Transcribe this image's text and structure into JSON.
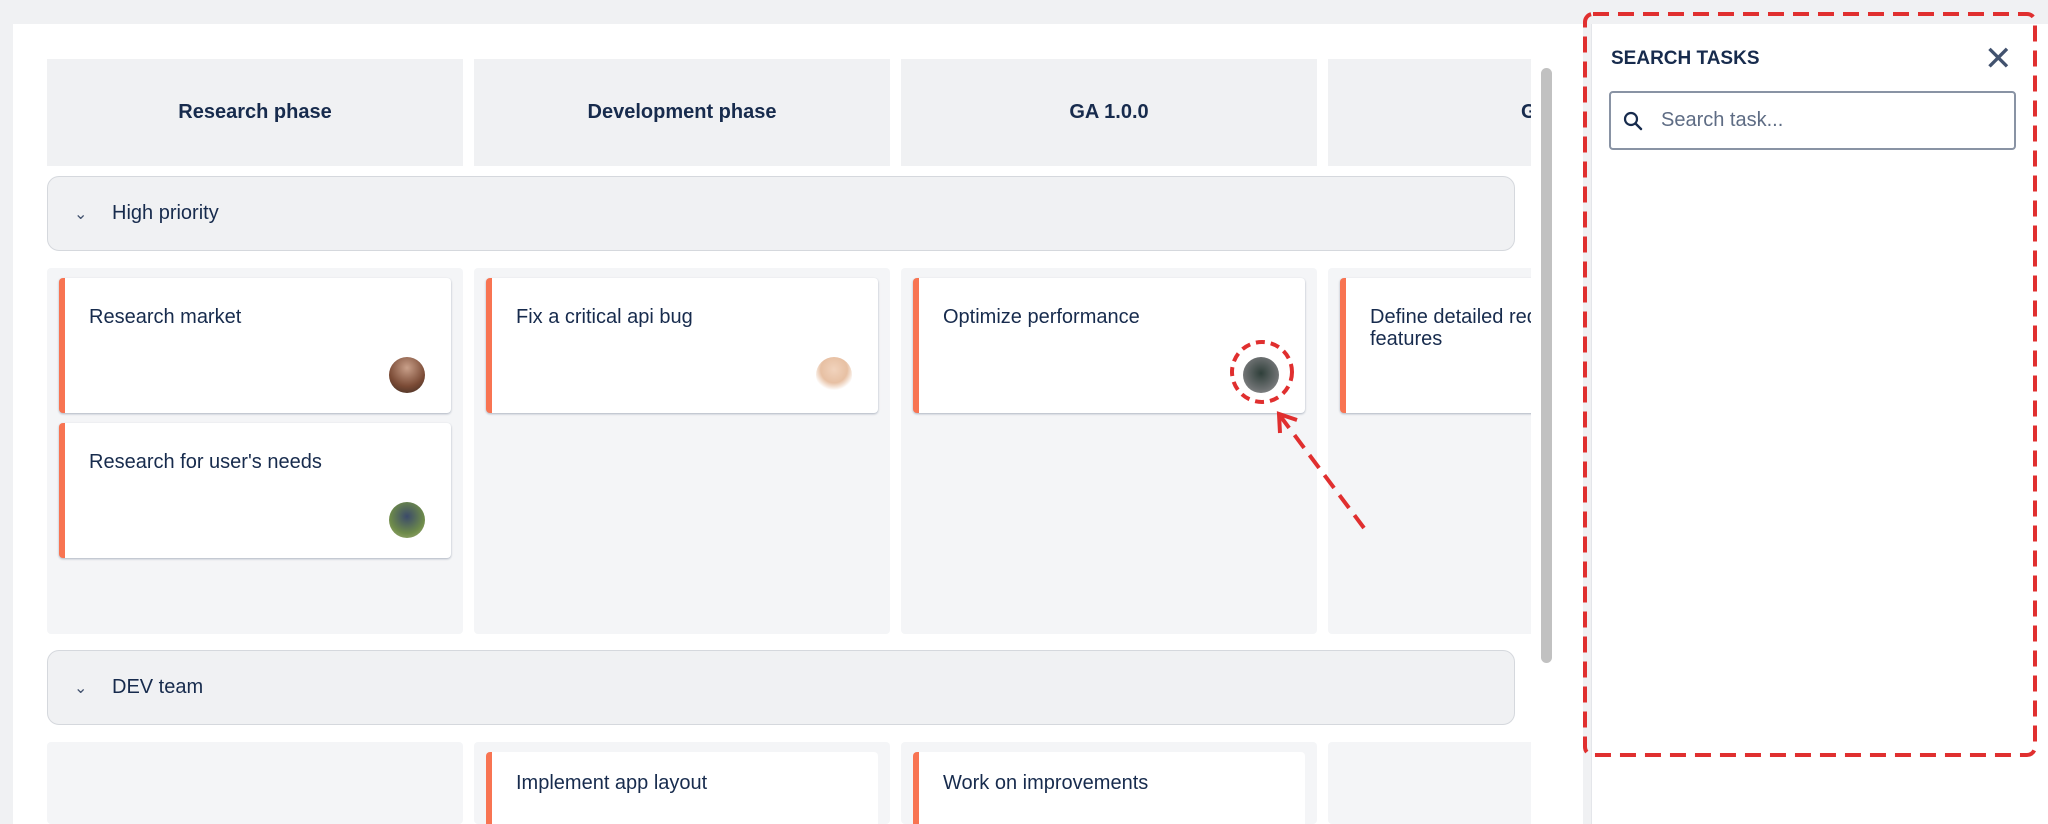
{
  "columns": [
    "Research phase",
    "Development phase",
    "GA 1.0.0",
    "GA"
  ],
  "groups": [
    {
      "name": "High priority",
      "cells": [
        [
          {
            "title": "Research market",
            "avatar": "avatar-1"
          },
          {
            "title": "Research for user's needs",
            "avatar": "avatar-2"
          }
        ],
        [
          {
            "title": "Fix a critical api bug",
            "avatar": "avatar-3"
          }
        ],
        [
          {
            "title": "Optimize performance",
            "avatar": "avatar-4"
          }
        ],
        [
          {
            "title": "Define detailed requirements for new features"
          }
        ]
      ]
    },
    {
      "name": "DEV team",
      "cells": [
        [],
        [
          {
            "title": "Implement app layout"
          }
        ],
        [
          {
            "title": "Work on improvements"
          }
        ],
        []
      ]
    }
  ],
  "search_panel": {
    "title": "SEARCH TASKS",
    "placeholder": "Search task...",
    "close_icon": "close-icon",
    "search_icon": "search-icon"
  },
  "colors": {
    "card_accent": "#f87452",
    "annotation": "#e02f2f",
    "text": "#172b4d"
  }
}
